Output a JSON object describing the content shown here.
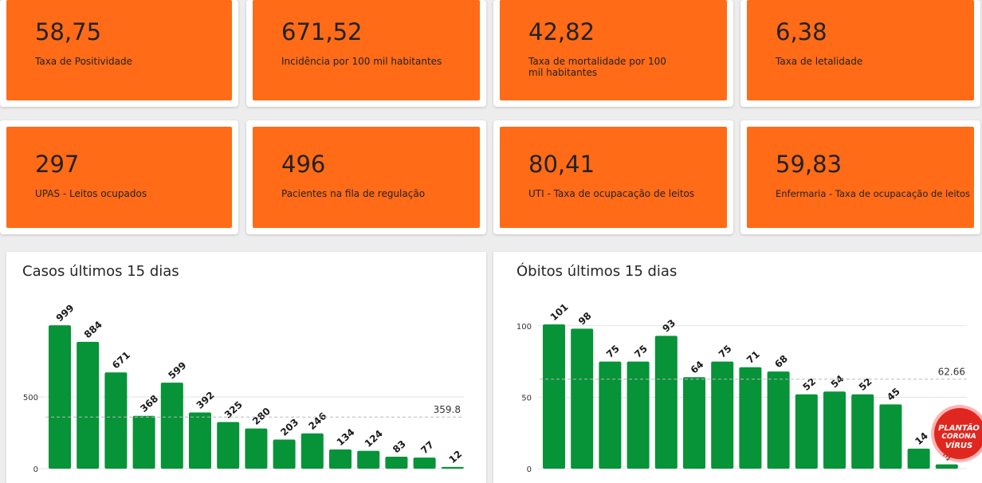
{
  "kpis_row1": [
    {
      "value": "58,75",
      "label": "Taxa de Positividade"
    },
    {
      "value": "671,52",
      "label": "Incidência por 100 mil habitantes"
    },
    {
      "value": "42,82",
      "label": "Taxa de mortalidade por 100 mil habitantes"
    },
    {
      "value": "6,38",
      "label": "Taxa de letalidade"
    }
  ],
  "kpis_row2": [
    {
      "value": "297",
      "label": "UPAS - Leitos ocupados"
    },
    {
      "value": "496",
      "label": "Pacientes na fila de regulação"
    },
    {
      "value": "80,41",
      "label": "UTI - Taxa de ocupacação de leitos"
    },
    {
      "value": "59,83",
      "label": "Enfermaria - Taxa de ocupacação de leitos"
    }
  ],
  "colors": {
    "tile": "#ff6b17",
    "bar": "#079338",
    "badge": "#e0271f"
  },
  "badge": {
    "line1": "PLANTÃO",
    "line2": "CORONA",
    "line3": "VÍRUS"
  },
  "chart_data": [
    {
      "type": "bar",
      "title": "Casos últimos 15 dias",
      "values": [
        999,
        884,
        671,
        368,
        599,
        392,
        325,
        280,
        203,
        246,
        134,
        124,
        83,
        77,
        12
      ],
      "yticks": [
        0,
        500
      ],
      "average": 359.8,
      "average_label": "359.8",
      "ylim": [
        0,
        1000
      ]
    },
    {
      "type": "bar",
      "title": "Óbitos últimos 15 dias",
      "values": [
        101,
        98,
        75,
        75,
        93,
        64,
        75,
        71,
        68,
        52,
        54,
        52,
        45,
        14,
        3
      ],
      "yticks": [
        0,
        50,
        100
      ],
      "average": 62.66,
      "average_label": "62.66",
      "ylim": [
        0,
        101
      ]
    }
  ]
}
